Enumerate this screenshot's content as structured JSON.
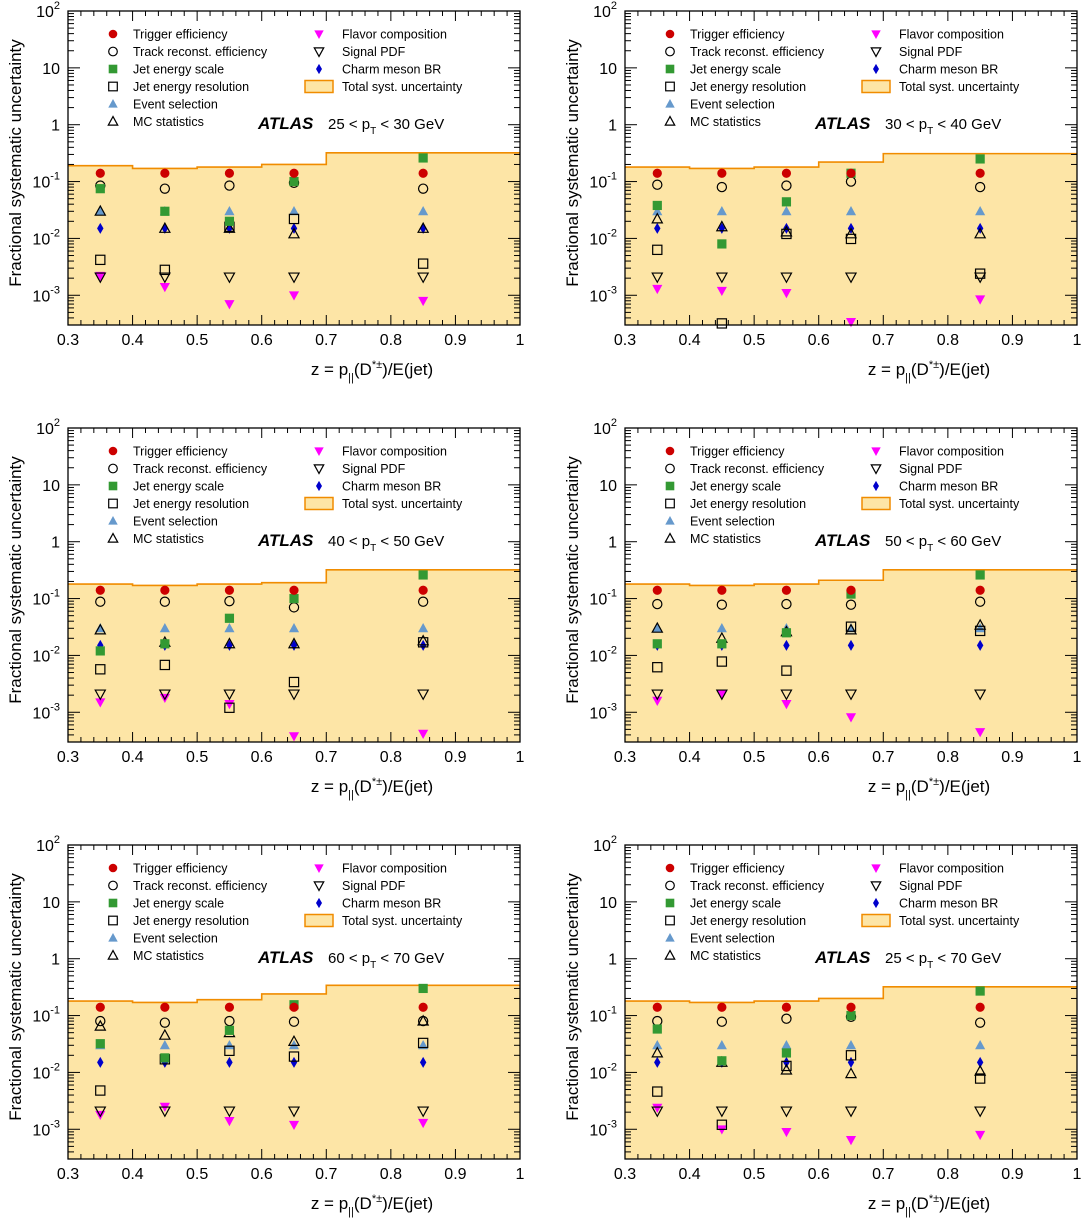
{
  "figure": {
    "atlas_label": "ATLAS",
    "panel_layout": "3 rows x 2 columns"
  },
  "legend": [
    {
      "key": "trigger",
      "label": "Trigger efficiency",
      "marker": "filled-circle",
      "color": "#cc0000"
    },
    {
      "key": "track",
      "label": "Track reconst. efficiency",
      "marker": "open-circle",
      "color": "#000000"
    },
    {
      "key": "jes",
      "label": "Jet energy scale",
      "marker": "filled-square",
      "color": "#339933"
    },
    {
      "key": "jer",
      "label": "Jet energy resolution",
      "marker": "open-square",
      "color": "#000000"
    },
    {
      "key": "event",
      "label": "Event selection",
      "marker": "filled-triangle-up",
      "color": "#6699cc"
    },
    {
      "key": "mcstat",
      "label": "MC statistics",
      "marker": "open-triangle-up",
      "color": "#000000"
    },
    {
      "key": "flavor",
      "label": "Flavor composition",
      "marker": "filled-triangle-down",
      "color": "#ff00ff"
    },
    {
      "key": "pdf",
      "label": "Signal PDF",
      "marker": "open-triangle-down",
      "color": "#000000"
    },
    {
      "key": "br",
      "label": "Charm meson BR",
      "marker": "filled-diamond",
      "color": "#0000cc"
    },
    {
      "key": "total",
      "label": "Total syst. uncertainty",
      "marker": "band",
      "color": "#fde5a6",
      "edge": "#f08c00"
    }
  ],
  "chart_data": [
    {
      "type": "scatter",
      "bin_label": "25 < p_T < 30 GeV",
      "xlabel": "z = p_||(D*±)/E(jet)",
      "ylabel": "Fractional systematic uncertainty",
      "xlim": [
        0.3,
        1.0
      ],
      "ylim": [
        0.0003,
        100
      ],
      "yscale": "log",
      "x": [
        0.35,
        0.45,
        0.55,
        0.65,
        0.85
      ],
      "total": {
        "edges": [
          0.3,
          0.4,
          0.5,
          0.6,
          0.7,
          1.0
        ],
        "values": [
          0.19,
          0.17,
          0.18,
          0.2,
          0.32
        ]
      },
      "series": [
        {
          "key": "trigger",
          "values": [
            0.14,
            0.14,
            0.14,
            0.14,
            0.14
          ]
        },
        {
          "key": "track",
          "values": [
            0.085,
            0.075,
            0.085,
            0.095,
            0.075
          ]
        },
        {
          "key": "jes",
          "values": [
            0.075,
            0.03,
            0.02,
            0.1,
            0.26
          ]
        },
        {
          "key": "jer",
          "values": [
            0.0042,
            0.0028,
            0.016,
            0.022,
            0.0036
          ]
        },
        {
          "key": "event",
          "values": [
            0.03,
            0.03,
            0.03,
            0.03,
            0.03
          ]
        },
        {
          "key": "mcstat",
          "values": [
            0.03,
            0.015,
            0.015,
            0.012,
            0.015
          ]
        },
        {
          "key": "flavor",
          "values": [
            0.0022,
            0.0014,
            0.0007,
            0.001,
            0.0008
          ]
        },
        {
          "key": "pdf",
          "values": [
            0.0021,
            0.0021,
            0.0021,
            0.0021,
            0.0021
          ]
        },
        {
          "key": "br",
          "values": [
            0.015,
            0.015,
            0.015,
            0.015,
            0.015
          ]
        }
      ]
    },
    {
      "type": "scatter",
      "bin_label": "30 < p_T < 40 GeV",
      "xlabel": "z = p_||(D*±)/E(jet)",
      "ylabel": "Fractional systematic uncertainty",
      "xlim": [
        0.3,
        1.0
      ],
      "ylim": [
        0.0003,
        100
      ],
      "yscale": "log",
      "x": [
        0.35,
        0.45,
        0.55,
        0.65,
        0.85
      ],
      "total": {
        "edges": [
          0.3,
          0.4,
          0.5,
          0.6,
          0.7,
          1.0
        ],
        "values": [
          0.18,
          0.17,
          0.18,
          0.22,
          0.31
        ]
      },
      "series": [
        {
          "key": "trigger",
          "values": [
            0.14,
            0.14,
            0.14,
            0.14,
            0.14
          ]
        },
        {
          "key": "track",
          "values": [
            0.088,
            0.08,
            0.085,
            0.1,
            0.08
          ]
        },
        {
          "key": "jes",
          "values": [
            0.038,
            0.008,
            0.044,
            0.14,
            0.25
          ]
        },
        {
          "key": "jer",
          "values": [
            0.0063,
            0.00032,
            0.012,
            0.0098,
            0.0024
          ]
        },
        {
          "key": "event",
          "values": [
            0.03,
            0.03,
            0.03,
            0.03,
            0.03
          ]
        },
        {
          "key": "mcstat",
          "values": [
            0.022,
            0.016,
            0.013,
            0.012,
            0.012
          ]
        },
        {
          "key": "flavor",
          "values": [
            0.0013,
            0.0012,
            0.0011,
            0.00034,
            0.00085
          ]
        },
        {
          "key": "pdf",
          "values": [
            0.0021,
            0.0021,
            0.0021,
            0.0021,
            0.0021
          ]
        },
        {
          "key": "br",
          "values": [
            0.015,
            0.015,
            0.015,
            0.015,
            0.015
          ]
        }
      ]
    },
    {
      "type": "scatter",
      "bin_label": "40 < p_T < 50 GeV",
      "xlabel": "z = p_||(D*±)/E(jet)",
      "ylabel": "Fractional systematic uncertainty",
      "xlim": [
        0.3,
        1.0
      ],
      "ylim": [
        0.0003,
        100
      ],
      "yscale": "log",
      "x": [
        0.35,
        0.45,
        0.55,
        0.65,
        0.85
      ],
      "total": {
        "edges": [
          0.3,
          0.4,
          0.5,
          0.6,
          0.7,
          1.0
        ],
        "values": [
          0.18,
          0.17,
          0.18,
          0.19,
          0.32
        ]
      },
      "series": [
        {
          "key": "trigger",
          "values": [
            0.14,
            0.14,
            0.14,
            0.14,
            0.14
          ]
        },
        {
          "key": "track",
          "values": [
            0.088,
            0.088,
            0.09,
            0.07,
            0.088
          ]
        },
        {
          "key": "jes",
          "values": [
            0.012,
            0.016,
            0.045,
            0.1,
            0.26
          ]
        },
        {
          "key": "jer",
          "values": [
            0.0057,
            0.0068,
            0.0012,
            0.0034,
            0.017
          ]
        },
        {
          "key": "event",
          "values": [
            0.03,
            0.03,
            0.03,
            0.03,
            0.03
          ]
        },
        {
          "key": "mcstat",
          "values": [
            0.028,
            0.017,
            0.016,
            0.016,
            0.018
          ]
        },
        {
          "key": "flavor",
          "values": [
            0.0015,
            0.0018,
            0.0014,
            0.00038,
            0.00042
          ]
        },
        {
          "key": "pdf",
          "values": [
            0.0021,
            0.0021,
            0.0021,
            0.0021,
            0.0021
          ]
        },
        {
          "key": "br",
          "values": [
            0.015,
            0.015,
            0.015,
            0.015,
            0.015
          ]
        }
      ]
    },
    {
      "type": "scatter",
      "bin_label": "50 < p_T < 60 GeV",
      "xlabel": "z = p_||(D*±)/E(jet)",
      "ylabel": "Fractional systematic uncertainty",
      "xlim": [
        0.3,
        1.0
      ],
      "ylim": [
        0.0003,
        100
      ],
      "yscale": "log",
      "x": [
        0.35,
        0.45,
        0.55,
        0.65,
        0.85
      ],
      "total": {
        "edges": [
          0.3,
          0.4,
          0.5,
          0.6,
          0.7,
          1.0
        ],
        "values": [
          0.18,
          0.17,
          0.18,
          0.21,
          0.32
        ]
      },
      "series": [
        {
          "key": "trigger",
          "values": [
            0.14,
            0.14,
            0.14,
            0.14,
            0.14
          ]
        },
        {
          "key": "track",
          "values": [
            0.08,
            0.078,
            0.08,
            0.078,
            0.088
          ]
        },
        {
          "key": "jes",
          "values": [
            0.016,
            0.016,
            0.025,
            0.12,
            0.26
          ]
        },
        {
          "key": "jer",
          "values": [
            0.0062,
            0.0078,
            0.0054,
            0.032,
            0.027
          ]
        },
        {
          "key": "event",
          "values": [
            0.03,
            0.03,
            0.03,
            0.03,
            0.03
          ]
        },
        {
          "key": "mcstat",
          "values": [
            0.03,
            0.02,
            0.026,
            0.028,
            0.034
          ]
        },
        {
          "key": "flavor",
          "values": [
            0.0016,
            0.0021,
            0.0014,
            0.00082,
            0.00045
          ]
        },
        {
          "key": "pdf",
          "values": [
            0.0021,
            0.0021,
            0.0021,
            0.0021,
            0.0021
          ]
        },
        {
          "key": "br",
          "values": [
            0.015,
            0.015,
            0.015,
            0.015,
            0.015
          ]
        }
      ]
    },
    {
      "type": "scatter",
      "bin_label": "60 < p_T < 70 GeV",
      "xlabel": "z = p_||(D*±)/E(jet)",
      "ylabel": "Fractional systematic uncertainty",
      "xlim": [
        0.3,
        1.0
      ],
      "ylim": [
        0.0003,
        100
      ],
      "yscale": "log",
      "x": [
        0.35,
        0.45,
        0.55,
        0.65,
        0.85
      ],
      "total": {
        "edges": [
          0.3,
          0.4,
          0.5,
          0.6,
          0.7,
          1.0
        ],
        "values": [
          0.18,
          0.17,
          0.19,
          0.24,
          0.34
        ]
      },
      "series": [
        {
          "key": "trigger",
          "values": [
            0.14,
            0.14,
            0.14,
            0.14,
            0.14
          ]
        },
        {
          "key": "track",
          "values": [
            0.08,
            0.075,
            0.08,
            0.078,
            0.08
          ]
        },
        {
          "key": "jes",
          "values": [
            0.032,
            0.018,
            0.055,
            0.155,
            0.3
          ]
        },
        {
          "key": "jer",
          "values": [
            0.0048,
            0.017,
            0.024,
            0.019,
            0.033
          ]
        },
        {
          "key": "event",
          "values": [
            0.03,
            0.03,
            0.03,
            0.03,
            0.03
          ]
        },
        {
          "key": "mcstat",
          "values": [
            0.065,
            0.045,
            0.05,
            0.035,
            0.08
          ]
        },
        {
          "key": "flavor",
          "values": [
            0.0018,
            0.0025,
            0.0014,
            0.0012,
            0.0013
          ]
        },
        {
          "key": "pdf",
          "values": [
            0.0021,
            0.0021,
            0.0021,
            0.0021,
            0.0021
          ]
        },
        {
          "key": "br",
          "values": [
            0.015,
            0.015,
            0.015,
            0.015,
            0.015
          ]
        }
      ]
    },
    {
      "type": "scatter",
      "bin_label": "25 < p_T < 70 GeV",
      "xlabel": "z = p_||(D*±)/E(jet)",
      "ylabel": "Fractional systematic uncertainty",
      "xlim": [
        0.3,
        1.0
      ],
      "ylim": [
        0.0003,
        100
      ],
      "yscale": "log",
      "x": [
        0.35,
        0.45,
        0.55,
        0.65,
        0.85
      ],
      "total": {
        "edges": [
          0.3,
          0.4,
          0.5,
          0.6,
          0.7,
          1.0
        ],
        "values": [
          0.18,
          0.17,
          0.18,
          0.2,
          0.32
        ]
      },
      "series": [
        {
          "key": "trigger",
          "values": [
            0.14,
            0.14,
            0.14,
            0.14,
            0.14
          ]
        },
        {
          "key": "track",
          "values": [
            0.08,
            0.078,
            0.088,
            0.095,
            0.075
          ]
        },
        {
          "key": "jes",
          "values": [
            0.058,
            0.016,
            0.022,
            0.1,
            0.27
          ]
        },
        {
          "key": "jer",
          "values": [
            0.0046,
            0.0012,
            0.013,
            0.02,
            0.0078
          ]
        },
        {
          "key": "event",
          "values": [
            0.03,
            0.03,
            0.03,
            0.03,
            0.03
          ]
        },
        {
          "key": "mcstat",
          "values": [
            0.022,
            0.015,
            0.011,
            0.0095,
            0.0105
          ]
        },
        {
          "key": "flavor",
          "values": [
            0.0024,
            0.001,
            0.0009,
            0.00065,
            0.0008
          ]
        },
        {
          "key": "pdf",
          "values": [
            0.0021,
            0.0021,
            0.0021,
            0.0021,
            0.0021
          ]
        },
        {
          "key": "br",
          "values": [
            0.015,
            0.015,
            0.015,
            0.015,
            0.015
          ]
        }
      ]
    }
  ]
}
